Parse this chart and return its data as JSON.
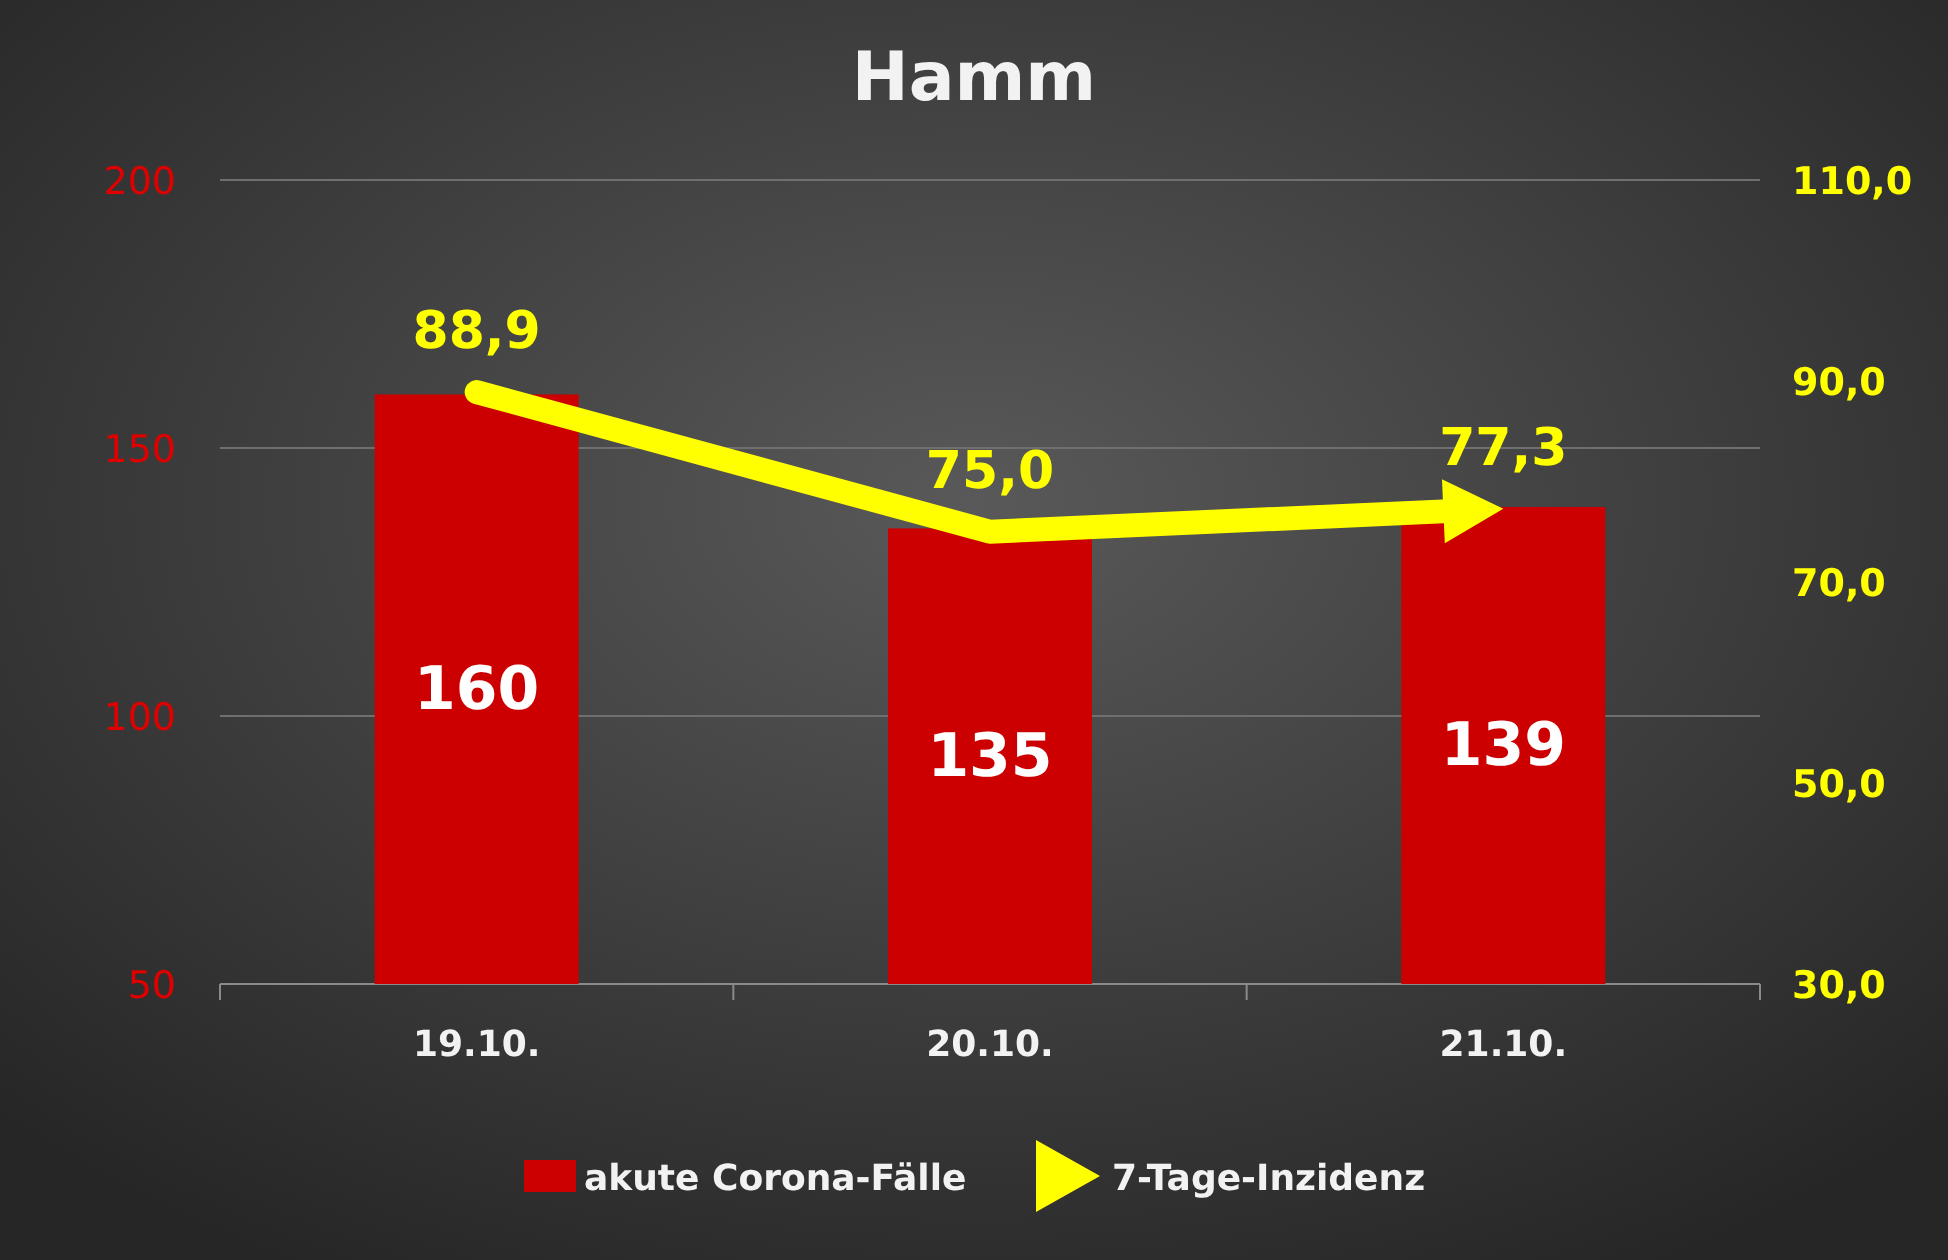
{
  "chart_data": {
    "type": "bar",
    "title": "Hamm",
    "categories": [
      "19.10.",
      "20.10.",
      "21.10."
    ],
    "series": [
      {
        "name": "akute Corona-Fälle",
        "color": "#cc0000",
        "values": [
          160,
          135,
          139
        ],
        "value_labels": [
          "160",
          "135",
          "139"
        ]
      },
      {
        "name": "7-Tage-Inzidenz",
        "type": "line",
        "axis": "y2",
        "color": "#ffff00",
        "values": [
          88.9,
          75.0,
          77.3
        ],
        "value_labels": [
          "88,9",
          "75,0",
          "77,3"
        ]
      }
    ],
    "ylim": [
      50,
      200
    ],
    "yticks": [
      50,
      100,
      150,
      200
    ],
    "y2lim": [
      30,
      110
    ],
    "y2ticks": [
      {
        "value": 30,
        "label": "30,0"
      },
      {
        "value": 50,
        "label": "50,0"
      },
      {
        "value": 70,
        "label": "70,0"
      },
      {
        "value": 90,
        "label": "90,0"
      },
      {
        "value": 110,
        "label": "110,0"
      }
    ],
    "grid": "y",
    "legend": "bottom"
  }
}
